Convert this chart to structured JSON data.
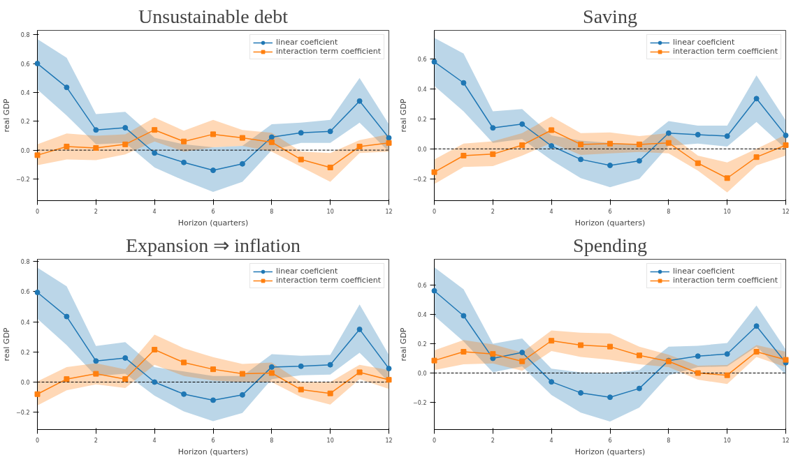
{
  "chart_data": [
    {
      "type": "line",
      "title": "Unsustainable debt",
      "xlabel": "Horizon (quarters)",
      "ylabel": "real GDP",
      "x": [
        0,
        1,
        2,
        3,
        4,
        5,
        6,
        7,
        8,
        9,
        10,
        11,
        12
      ],
      "xlim": [
        0,
        12
      ],
      "xticks": [
        0,
        2,
        4,
        6,
        8,
        10,
        12
      ],
      "ylim": [
        -0.35,
        0.83
      ],
      "yticks": [
        {
          "value": -0.2,
          "label": "−0.2"
        },
        {
          "value": 0,
          "label": "0.0"
        },
        {
          "value": 0.2,
          "label": "0.2"
        },
        {
          "value": 0.4,
          "label": "0.4"
        },
        {
          "value": 0.6,
          "label": "0.6"
        },
        {
          "value": 0.8,
          "label": "0.8"
        }
      ],
      "grid": false,
      "legend": "top right",
      "ref_lines": [
        {
          "axis": "y",
          "value": 0,
          "color": "#000000",
          "line_style": "dashed"
        }
      ],
      "series": [
        {
          "name": "linear coeficient",
          "color": "#1f77b4",
          "marker": "circle",
          "values": [
            0.6,
            0.435,
            0.14,
            0.155,
            -0.02,
            -0.085,
            -0.14,
            -0.095,
            0.09,
            0.12,
            0.13,
            0.34,
            0.085
          ],
          "upper": [
            0.77,
            0.64,
            0.25,
            0.265,
            0.085,
            0.04,
            0.02,
            0.03,
            0.18,
            0.19,
            0.21,
            0.5,
            0.18
          ],
          "lower": [
            0.42,
            0.24,
            0.04,
            0.05,
            -0.12,
            -0.21,
            -0.29,
            -0.22,
            0.0,
            0.05,
            0.05,
            0.19,
            -0.01
          ]
        },
        {
          "name": "interaction term coefficient",
          "color": "#ff7f0e",
          "marker": "square",
          "values": [
            -0.035,
            0.025,
            0.015,
            0.04,
            0.14,
            0.06,
            0.11,
            0.085,
            0.055,
            -0.065,
            -0.12,
            0.025,
            0.05
          ],
          "upper": [
            0.04,
            0.115,
            0.1,
            0.11,
            0.225,
            0.135,
            0.21,
            0.14,
            0.12,
            -0.01,
            -0.02,
            0.07,
            0.11
          ],
          "lower": [
            -0.105,
            -0.065,
            -0.07,
            -0.03,
            0.06,
            -0.01,
            0.02,
            0.03,
            -0.01,
            -0.115,
            -0.22,
            -0.02,
            -0.01
          ]
        }
      ]
    },
    {
      "type": "line",
      "title": "Saving",
      "xlabel": "Horizon (quarters)",
      "ylabel": "real GDP",
      "x": [
        0,
        1,
        2,
        3,
        4,
        5,
        6,
        7,
        8,
        9,
        10,
        11,
        12
      ],
      "xlim": [
        0,
        12
      ],
      "xticks": [
        0,
        2,
        4,
        6,
        8,
        10,
        12
      ],
      "ylim": [
        -0.345,
        0.79
      ],
      "yticks": [
        {
          "value": -0.2,
          "label": "−0.2"
        },
        {
          "value": 0,
          "label": "0.0"
        },
        {
          "value": 0.2,
          "label": "0.2"
        },
        {
          "value": 0.4,
          "label": "0.4"
        },
        {
          "value": 0.6,
          "label": "0.6"
        }
      ],
      "grid": false,
      "legend": "top right",
      "ref_lines": [
        {
          "axis": "y",
          "value": 0,
          "color": "#000000",
          "line_style": "dashed"
        }
      ],
      "series": [
        {
          "name": "linear coeficient",
          "color": "#1f77b4",
          "marker": "circle",
          "values": [
            0.58,
            0.44,
            0.14,
            0.165,
            0.02,
            -0.07,
            -0.11,
            -0.08,
            0.105,
            0.095,
            0.085,
            0.335,
            0.09
          ],
          "upper": [
            0.74,
            0.635,
            0.25,
            0.265,
            0.09,
            0.055,
            0.04,
            0.03,
            0.185,
            0.155,
            0.155,
            0.49,
            0.19
          ],
          "lower": [
            0.42,
            0.25,
            0.04,
            0.065,
            -0.075,
            -0.195,
            -0.255,
            -0.2,
            0.02,
            0.035,
            0.015,
            0.18,
            0.0
          ]
        },
        {
          "name": "interaction term coefficient",
          "color": "#ff7f0e",
          "marker": "square",
          "values": [
            -0.155,
            -0.045,
            -0.035,
            0.025,
            0.125,
            0.03,
            0.035,
            0.03,
            0.04,
            -0.095,
            -0.195,
            -0.055,
            0.025
          ],
          "upper": [
            -0.07,
            0.035,
            0.05,
            0.105,
            0.215,
            0.105,
            0.11,
            0.085,
            0.105,
            -0.045,
            -0.09,
            0.0,
            0.095
          ],
          "lower": [
            -0.235,
            -0.12,
            -0.115,
            -0.045,
            0.04,
            -0.04,
            -0.03,
            -0.02,
            -0.03,
            -0.145,
            -0.29,
            -0.11,
            -0.045
          ]
        }
      ]
    },
    {
      "type": "line",
      "title": "Expansion ⇒ inflation",
      "xlabel": "Horizon (quarters)",
      "ylabel": "real GDP",
      "x": [
        0,
        1,
        2,
        3,
        4,
        5,
        6,
        7,
        8,
        9,
        10,
        11,
        12
      ],
      "xlim": [
        0,
        12
      ],
      "xticks": [
        0,
        2,
        4,
        6,
        8,
        10,
        12
      ],
      "ylim": [
        -0.315,
        0.815
      ],
      "yticks": [
        {
          "value": -0.2,
          "label": "−0.2"
        },
        {
          "value": 0,
          "label": "0.0"
        },
        {
          "value": 0.2,
          "label": "0.2"
        },
        {
          "value": 0.4,
          "label": "0.4"
        },
        {
          "value": 0.6,
          "label": "0.6"
        },
        {
          "value": 0.8,
          "label": "0.8"
        }
      ],
      "grid": false,
      "legend": "top right",
      "ref_lines": [
        {
          "axis": "y",
          "value": 0,
          "color": "#000000",
          "line_style": "dashed"
        }
      ],
      "series": [
        {
          "name": "linear coeficient",
          "color": "#1f77b4",
          "marker": "circle",
          "values": [
            0.595,
            0.435,
            0.14,
            0.16,
            0.0,
            -0.08,
            -0.12,
            -0.085,
            0.1,
            0.105,
            0.115,
            0.35,
            0.09
          ],
          "upper": [
            0.76,
            0.635,
            0.24,
            0.265,
            0.1,
            0.07,
            0.04,
            0.04,
            0.185,
            0.175,
            0.18,
            0.515,
            0.18
          ],
          "lower": [
            0.42,
            0.245,
            0.04,
            0.055,
            -0.09,
            -0.195,
            -0.26,
            -0.205,
            0.02,
            0.045,
            0.05,
            0.195,
            0.0
          ]
        },
        {
          "name": "interaction term coefficient",
          "color": "#ff7f0e",
          "marker": "square",
          "values": [
            -0.08,
            0.02,
            0.055,
            0.02,
            0.215,
            0.13,
            0.085,
            0.055,
            0.06,
            -0.05,
            -0.075,
            0.065,
            0.015
          ],
          "upper": [
            0.005,
            0.1,
            0.125,
            0.085,
            0.315,
            0.225,
            0.165,
            0.12,
            0.13,
            0.0,
            0.0,
            0.115,
            0.08
          ],
          "lower": [
            -0.155,
            -0.055,
            -0.015,
            -0.04,
            0.115,
            0.04,
            0.01,
            0.0,
            0.0,
            -0.1,
            -0.15,
            0.02,
            -0.045
          ]
        }
      ]
    },
    {
      "type": "line",
      "title": "Spending",
      "xlabel": "Horizon (quarters)",
      "ylabel": "real GDP",
      "x": [
        0,
        1,
        2,
        3,
        4,
        5,
        6,
        7,
        8,
        9,
        10,
        11,
        12
      ],
      "xlim": [
        0,
        12
      ],
      "xticks": [
        0,
        2,
        4,
        6,
        8,
        10,
        12
      ],
      "ylim": [
        -0.385,
        0.775
      ],
      "yticks": [
        {
          "value": -0.2,
          "label": "−0.2"
        },
        {
          "value": 0,
          "label": "0.0"
        },
        {
          "value": 0.2,
          "label": "0.2"
        },
        {
          "value": 0.4,
          "label": "0.4"
        },
        {
          "value": 0.6,
          "label": "0.6"
        }
      ],
      "grid": false,
      "legend": "top right",
      "ref_lines": [
        {
          "axis": "y",
          "value": 0,
          "color": "#000000",
          "line_style": "dashed"
        }
      ],
      "series": [
        {
          "name": "linear coeficient",
          "color": "#1f77b4",
          "marker": "circle",
          "values": [
            0.56,
            0.39,
            0.1,
            0.14,
            -0.06,
            -0.135,
            -0.165,
            -0.105,
            0.085,
            0.115,
            0.13,
            0.32,
            0.07
          ],
          "upper": [
            0.72,
            0.57,
            0.2,
            0.235,
            0.03,
            0.005,
            0.0,
            0.02,
            0.18,
            0.185,
            0.205,
            0.46,
            0.16
          ],
          "lower": [
            0.39,
            0.215,
            0.005,
            0.045,
            -0.15,
            -0.27,
            -0.33,
            -0.235,
            -0.015,
            0.04,
            0.045,
            0.18,
            -0.01
          ]
        },
        {
          "name": "interaction term coefficient",
          "color": "#ff7f0e",
          "marker": "square",
          "values": [
            0.085,
            0.145,
            0.13,
            0.08,
            0.22,
            0.19,
            0.18,
            0.12,
            0.08,
            0.0,
            -0.015,
            0.145,
            0.09
          ],
          "upper": [
            0.155,
            0.225,
            0.195,
            0.14,
            0.29,
            0.275,
            0.27,
            0.18,
            0.125,
            0.05,
            0.055,
            0.19,
            0.145
          ],
          "lower": [
            0.02,
            0.06,
            0.065,
            0.015,
            0.15,
            0.11,
            0.09,
            0.06,
            0.04,
            -0.045,
            -0.075,
            0.11,
            0.04
          ]
        }
      ]
    }
  ]
}
